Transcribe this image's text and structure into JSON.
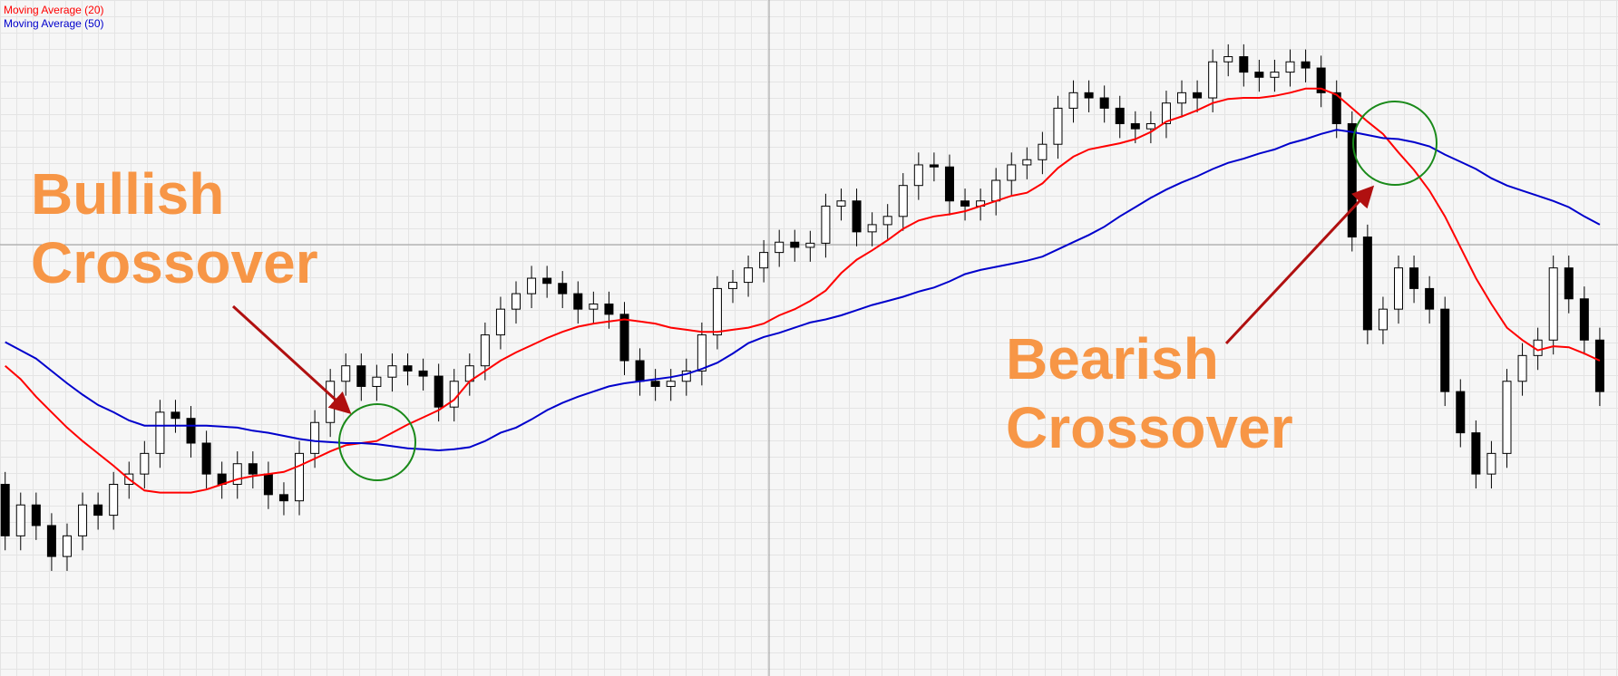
{
  "chart_data": {
    "type": "candlestick",
    "ylim": [
      0,
      656
    ],
    "up_color": "#ffffff",
    "down_color": "#000000",
    "annotation_color": "#f79646",
    "annotations": [
      "Bullish Crossover",
      "Bearish Crossover"
    ],
    "candles": {
      "open": [
        186,
        136,
        166,
        146,
        116,
        136,
        166,
        156,
        186,
        196,
        216,
        256,
        250,
        226,
        196,
        186,
        206,
        196,
        176,
        170,
        216,
        246,
        286,
        301,
        281,
        290,
        301,
        296,
        291,
        261,
        286,
        301,
        331,
        356,
        371,
        386,
        381,
        371,
        356,
        361,
        351,
        306,
        286,
        281,
        286,
        296,
        331,
        376,
        382,
        396,
        411,
        421,
        416,
        420,
        456,
        461,
        431,
        438,
        446,
        476,
        496,
        494,
        461,
        456,
        461,
        481,
        496,
        501,
        516,
        551,
        566,
        561,
        551,
        536,
        531,
        536,
        556,
        566,
        561,
        596,
        601,
        586,
        581,
        586,
        596,
        590,
        566,
        536,
        426,
        336,
        356,
        396,
        376,
        356,
        276,
        236,
        196,
        216,
        286,
        311,
        326,
        396,
        366,
        326
      ],
      "close": [
        136,
        166,
        146,
        116,
        136,
        166,
        156,
        186,
        196,
        216,
        256,
        250,
        226,
        196,
        186,
        206,
        196,
        176,
        170,
        216,
        246,
        286,
        301,
        281,
        290,
        301,
        296,
        291,
        261,
        286,
        301,
        331,
        356,
        371,
        386,
        381,
        371,
        356,
        361,
        351,
        306,
        286,
        281,
        286,
        296,
        331,
        376,
        382,
        396,
        411,
        421,
        416,
        420,
        456,
        461,
        431,
        438,
        446,
        476,
        496,
        494,
        461,
        456,
        461,
        481,
        496,
        501,
        516,
        551,
        566,
        561,
        551,
        536,
        531,
        536,
        556,
        566,
        561,
        596,
        601,
        586,
        581,
        586,
        596,
        590,
        566,
        536,
        426,
        336,
        356,
        396,
        376,
        356,
        276,
        236,
        196,
        216,
        286,
        311,
        326,
        396,
        366,
        326,
        276
      ],
      "high": [
        198,
        178,
        178,
        158,
        148,
        178,
        178,
        198,
        208,
        228,
        268,
        268,
        262,
        238,
        208,
        218,
        218,
        208,
        188,
        228,
        258,
        298,
        313,
        313,
        302,
        313,
        313,
        308,
        303,
        298,
        313,
        343,
        368,
        383,
        398,
        398,
        393,
        383,
        373,
        373,
        363,
        318,
        298,
        298,
        308,
        343,
        388,
        394,
        408,
        423,
        433,
        433,
        432,
        468,
        473,
        473,
        450,
        458,
        488,
        508,
        508,
        506,
        473,
        473,
        493,
        508,
        513,
        528,
        563,
        578,
        578,
        573,
        563,
        548,
        548,
        568,
        578,
        578,
        608,
        613,
        613,
        598,
        598,
        608,
        608,
        602,
        578,
        548,
        438,
        368,
        408,
        408,
        388,
        368,
        288,
        248,
        228,
        298,
        323,
        338,
        408,
        408,
        378,
        338
      ],
      "low": [
        122,
        122,
        132,
        102,
        102,
        122,
        142,
        142,
        172,
        182,
        202,
        236,
        212,
        182,
        172,
        172,
        182,
        162,
        156,
        156,
        202,
        232,
        272,
        267,
        267,
        276,
        282,
        277,
        247,
        247,
        272,
        287,
        317,
        342,
        357,
        367,
        357,
        342,
        342,
        337,
        292,
        272,
        267,
        267,
        272,
        282,
        317,
        362,
        368,
        382,
        397,
        402,
        402,
        406,
        442,
        417,
        417,
        424,
        432,
        462,
        480,
        447,
        442,
        442,
        447,
        467,
        482,
        487,
        502,
        537,
        547,
        537,
        522,
        517,
        517,
        522,
        542,
        547,
        547,
        582,
        572,
        567,
        567,
        572,
        576,
        552,
        522,
        412,
        322,
        322,
        342,
        362,
        342,
        262,
        222,
        182,
        182,
        202,
        272,
        297,
        312,
        352,
        312,
        262
      ]
    },
    "series": [
      {
        "name": "Moving Average (20)",
        "color": "#ff0000",
        "values": [
          301,
          288,
          271,
          256,
          241,
          228,
          216,
          204,
          191,
          180,
          178,
          178,
          178,
          181,
          186,
          191,
          194,
          196,
          198,
          204,
          211,
          218,
          224,
          226,
          228,
          236,
          244,
          251,
          258,
          268,
          286,
          296,
          306,
          314,
          321,
          328,
          334,
          339,
          342,
          344,
          346,
          344,
          342,
          338,
          336,
          334,
          334,
          336,
          338,
          342,
          350,
          356,
          364,
          374,
          391,
          404,
          413,
          423,
          434,
          442,
          446,
          448,
          451,
          456,
          461,
          466,
          469,
          478,
          493,
          504,
          511,
          514,
          517,
          521,
          528,
          538,
          543,
          549,
          556,
          560,
          561,
          561,
          563,
          566,
          570,
          570,
          564,
          551,
          538,
          526,
          508,
          491,
          471,
          446,
          416,
          386,
          361,
          338,
          326,
          316,
          320,
          319,
          313,
          306
        ]
      },
      {
        "name": "Moving Average (50)",
        "color": "#0000cc",
        "values": [
          324,
          316,
          308,
          296,
          284,
          273,
          263,
          256,
          248,
          243,
          243,
          243,
          243,
          243,
          242,
          241,
          238,
          236,
          233,
          230,
          228,
          227,
          226,
          226,
          225,
          223,
          221,
          220,
          219,
          220,
          222,
          228,
          236,
          241,
          249,
          258,
          265,
          271,
          276,
          281,
          284,
          286,
          288,
          290,
          293,
          298,
          304,
          313,
          323,
          329,
          333,
          338,
          343,
          346,
          350,
          355,
          360,
          364,
          368,
          373,
          377,
          383,
          390,
          394,
          397,
          400,
          403,
          407,
          414,
          421,
          428,
          436,
          446,
          455,
          464,
          472,
          479,
          485,
          492,
          498,
          502,
          507,
          511,
          517,
          521,
          526,
          530,
          528,
          525,
          522,
          521,
          518,
          514,
          506,
          499,
          492,
          483,
          476,
          471,
          466,
          461,
          455,
          446,
          438
        ]
      }
    ]
  }
}
